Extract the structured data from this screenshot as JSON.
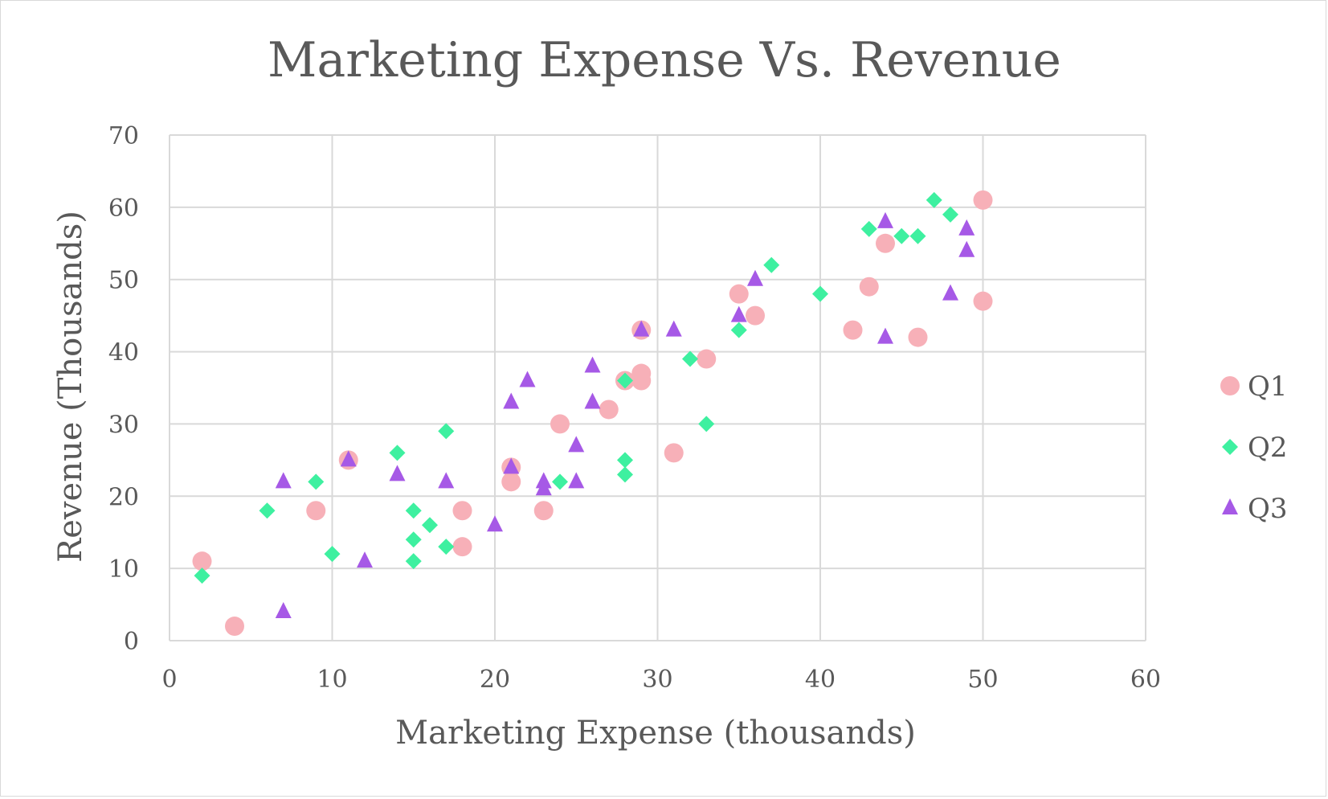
{
  "chart_data": {
    "type": "scatter",
    "title": "Marketing Expense Vs. Revenue",
    "xlabel": "Marketing Expense (thousands)",
    "ylabel": "Revenue (Thousands)",
    "xlim": [
      0,
      60
    ],
    "ylim": [
      0,
      70
    ],
    "xticks": [
      "0",
      "10",
      "20",
      "30",
      "40",
      "50",
      "60"
    ],
    "yticks": [
      "0",
      "10",
      "20",
      "30",
      "40",
      "50",
      "60",
      "70"
    ],
    "grid": true,
    "legend_position": "right",
    "series": [
      {
        "name": "Q1",
        "marker": "circle",
        "color": "#f7b0b8",
        "points": [
          [
            2,
            11
          ],
          [
            4,
            2
          ],
          [
            9,
            18
          ],
          [
            11,
            25
          ],
          [
            18,
            18
          ],
          [
            18,
            13
          ],
          [
            21,
            24
          ],
          [
            21,
            22
          ],
          [
            23,
            18
          ],
          [
            24,
            30
          ],
          [
            27,
            32
          ],
          [
            28,
            36
          ],
          [
            29,
            43
          ],
          [
            29,
            37
          ],
          [
            29,
            36
          ],
          [
            31,
            26
          ],
          [
            33,
            39
          ],
          [
            35,
            48
          ],
          [
            36,
            45
          ],
          [
            42,
            43
          ],
          [
            43,
            49
          ],
          [
            44,
            55
          ],
          [
            46,
            42
          ],
          [
            50,
            61
          ],
          [
            50,
            47
          ]
        ]
      },
      {
        "name": "Q2",
        "marker": "diamond",
        "color": "#3ef0a0",
        "points": [
          [
            2,
            9
          ],
          [
            6,
            18
          ],
          [
            9,
            22
          ],
          [
            10,
            12
          ],
          [
            14,
            26
          ],
          [
            15,
            18
          ],
          [
            15,
            14
          ],
          [
            15,
            11
          ],
          [
            16,
            16
          ],
          [
            17,
            29
          ],
          [
            17,
            13
          ],
          [
            24,
            22
          ],
          [
            28,
            36
          ],
          [
            28,
            25
          ],
          [
            28,
            23
          ],
          [
            32,
            39
          ],
          [
            33,
            30
          ],
          [
            35,
            43
          ],
          [
            37,
            52
          ],
          [
            40,
            48
          ],
          [
            43,
            57
          ],
          [
            45,
            56
          ],
          [
            46,
            56
          ],
          [
            47,
            61
          ],
          [
            48,
            59
          ]
        ]
      },
      {
        "name": "Q3",
        "marker": "triangle",
        "color": "#a659e6",
        "points": [
          [
            7,
            22
          ],
          [
            7,
            4
          ],
          [
            11,
            25
          ],
          [
            12,
            11
          ],
          [
            14,
            23
          ],
          [
            17,
            22
          ],
          [
            20,
            16
          ],
          [
            21,
            33
          ],
          [
            21,
            24
          ],
          [
            22,
            36
          ],
          [
            23,
            22
          ],
          [
            23,
            21
          ],
          [
            25,
            27
          ],
          [
            25,
            22
          ],
          [
            26,
            38
          ],
          [
            26,
            33
          ],
          [
            29,
            43
          ],
          [
            31,
            43
          ],
          [
            35,
            45
          ],
          [
            36,
            50
          ],
          [
            44,
            58
          ],
          [
            44,
            42
          ],
          [
            48,
            48
          ],
          [
            49,
            57
          ],
          [
            49,
            54
          ]
        ]
      }
    ]
  }
}
